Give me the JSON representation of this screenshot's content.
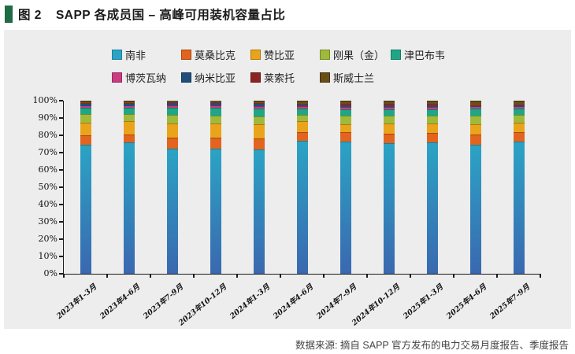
{
  "header": {
    "title_prefix": "图 2",
    "title_text": "SAPP 各成员国 – 高峰可用装机容量占比",
    "accent_color": "#1E6B45"
  },
  "footer": {
    "source": "数据来源: 摘自 SAPP 官方发布的电力交易月度报告、季度报告"
  },
  "chart_data": {
    "type": "bar",
    "stacked": true,
    "title": "SAPP 各成员国 – 高峰可用装机容量占比",
    "xlabel": "",
    "ylabel": "",
    "ylim": [
      0,
      100
    ],
    "ytick_step": 10,
    "ytick_labels": [
      "0%",
      "10%",
      "20%",
      "30%",
      "40%",
      "50%",
      "60%",
      "70%",
      "80%",
      "90%",
      "100%"
    ],
    "grid": false,
    "legend_position": "top",
    "legend_row_split": 5,
    "categories": [
      "2023年1-3月",
      "2023年4-6月",
      "2023年7-9月",
      "2023年10-12月",
      "2024年1-3月",
      "2024年4-6月",
      "2024年7-9月",
      "2024年10-12月",
      "2025年1-3月",
      "2025年4-6月",
      "2025年7-9月"
    ],
    "series": [
      {
        "name": "南非",
        "color": "#2BA3C4",
        "color_bottom": "#3A68B0",
        "border": "#1E7D9A",
        "values": [
          74.5,
          76,
          72.5,
          72.5,
          72,
          77,
          76.5,
          75.5,
          76,
          74.5,
          76.5
        ]
      },
      {
        "name": "莫桑比克",
        "color": "#E2641E",
        "border": "#A8470F",
        "values": [
          5.5,
          4.5,
          6,
          6,
          6,
          5,
          5.5,
          5.5,
          5.5,
          6,
          5.5
        ]
      },
      {
        "name": "赞比亚",
        "color": "#E9A41B",
        "border": "#AD7710",
        "values": [
          7.5,
          7.5,
          8.5,
          8.5,
          8.5,
          6,
          4.5,
          6,
          5.5,
          6,
          5.5
        ]
      },
      {
        "name": "刚果（金）",
        "color": "#9FBA3B",
        "border": "#74892A",
        "values": [
          5,
          4.5,
          5,
          4.5,
          4.5,
          4,
          5,
          4.5,
          4.5,
          5,
          4.5
        ]
      },
      {
        "name": "津巴布韦",
        "color": "#1FA687",
        "border": "#137A63",
        "values": [
          3.5,
          3.5,
          4,
          4.5,
          4.5,
          3.5,
          3.5,
          3.5,
          3.5,
          4,
          3.5
        ]
      },
      {
        "name": "博茨瓦纳",
        "color": "#C93C80",
        "border": "#92285C",
        "values": [
          1,
          1,
          1.5,
          1.5,
          1.5,
          1.5,
          1.5,
          1.5,
          1.5,
          0.8,
          1
        ]
      },
      {
        "name": "纳米比亚",
        "color": "#1F4E7C",
        "border": "#143756",
        "values": [
          1,
          1,
          1,
          1,
          1,
          0.8,
          1,
          1,
          1,
          0.7,
          0.8
        ]
      },
      {
        "name": "莱索托",
        "color": "#8C2522",
        "border": "#611715",
        "values": [
          0.5,
          0.5,
          0.5,
          0.5,
          0.5,
          0.4,
          0.5,
          0.5,
          0.5,
          0.5,
          0.4
        ]
      },
      {
        "name": "斯威士兰",
        "color": "#6B4E16",
        "border": "#41300C",
        "values": [
          1.5,
          1.5,
          1,
          1,
          1.5,
          1.8,
          2,
          2,
          2,
          2.5,
          2.3
        ]
      }
    ]
  }
}
